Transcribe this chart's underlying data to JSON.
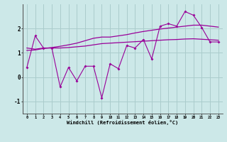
{
  "xlabel": "Windchill (Refroidissement éolien,°C)",
  "background_color": "#cce8e8",
  "grid_color": "#aacccc",
  "line_color": "#990099",
  "ylim": [
    -1.5,
    3.0
  ],
  "yticks": [
    -1,
    0,
    1,
    2
  ],
  "series": {
    "line1": [
      0.4,
      1.7,
      1.2,
      1.2,
      -0.4,
      0.4,
      -0.15,
      0.45,
      0.45,
      -0.85,
      0.55,
      0.35,
      1.3,
      1.2,
      1.55,
      0.75,
      2.1,
      2.2,
      2.1,
      2.7,
      2.55,
      2.05,
      1.45,
      1.45
    ],
    "line2": [
      1.2,
      1.15,
      1.2,
      1.2,
      1.2,
      1.22,
      1.25,
      1.28,
      1.33,
      1.38,
      1.4,
      1.42,
      1.44,
      1.46,
      1.48,
      1.5,
      1.52,
      1.54,
      1.55,
      1.57,
      1.58,
      1.56,
      1.54,
      1.52
    ],
    "line3": [
      1.1,
      1.12,
      1.18,
      1.22,
      1.27,
      1.33,
      1.4,
      1.5,
      1.6,
      1.65,
      1.65,
      1.7,
      1.75,
      1.82,
      1.88,
      1.93,
      1.98,
      2.02,
      2.06,
      2.1,
      2.14,
      2.14,
      2.1,
      2.06
    ]
  }
}
